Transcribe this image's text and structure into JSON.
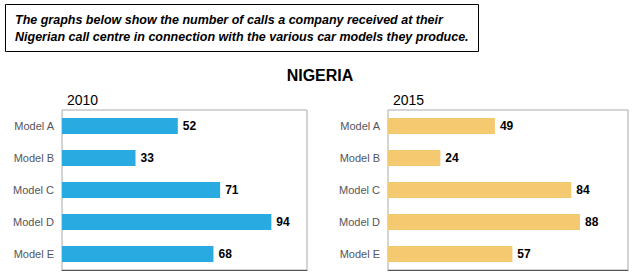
{
  "title": "NIGERIA",
  "annotations": [
    "The graphs below show the number of calls a company received at their\nNigerian call centre in connection with the various car models they produce."
  ],
  "chart_data": [
    {
      "type": "bar",
      "orientation": "horizontal",
      "title": "2010",
      "categories": [
        "Model A",
        "Model B",
        "Model C",
        "Model D",
        "Model E"
      ],
      "values": [
        52,
        33,
        71,
        94,
        68
      ],
      "color": "#29ABE2",
      "xlim": [
        0,
        110
      ],
      "grid": false,
      "data_labels": true,
      "tick_labels": "y"
    },
    {
      "type": "bar",
      "orientation": "horizontal",
      "title": "2015",
      "categories": [
        "Model A",
        "Model B",
        "Model C",
        "Model D",
        "Model E"
      ],
      "values": [
        49,
        24,
        84,
        88,
        57
      ],
      "color": "#F5C970",
      "xlim": [
        0,
        110
      ],
      "grid": false,
      "data_labels": true,
      "tick_labels": "y"
    }
  ]
}
